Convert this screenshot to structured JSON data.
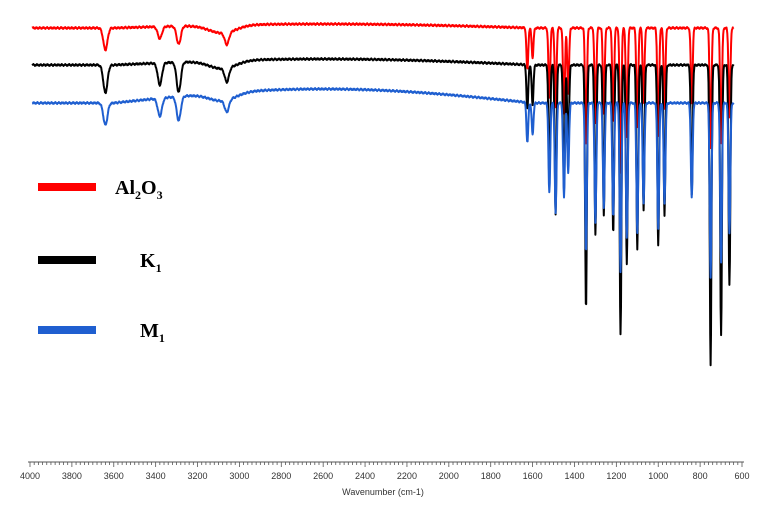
{
  "chart_data": {
    "type": "line",
    "xlabel": "Wavenumber (cm-1)",
    "xlim": [
      4000,
      600
    ],
    "x_ticks": [
      "4000",
      "3800",
      "3600",
      "3400",
      "3200",
      "3000",
      "2800",
      "2600",
      "2400",
      "2200",
      "2000",
      "1800",
      "1600",
      "1400",
      "1200",
      "1000",
      "800",
      "600"
    ],
    "series": [
      {
        "name": "Al2O3",
        "label_parts": [
          "Al",
          "2",
          "O",
          "3"
        ],
        "color": "#ff0000",
        "baseline": 28,
        "rise": 4,
        "peaks": [
          {
            "x": 3640,
            "d": 22
          },
          {
            "x": 3380,
            "d": 12
          },
          {
            "x": 3290,
            "d": 18
          },
          {
            "x": 3060,
            "d": 12
          },
          {
            "x": 1625,
            "d": 42
          },
          {
            "x": 1600,
            "d": 30
          },
          {
            "x": 1520,
            "d": 70
          },
          {
            "x": 1490,
            "d": 80
          },
          {
            "x": 1450,
            "d": 85
          },
          {
            "x": 1430,
            "d": 65
          },
          {
            "x": 1345,
            "d": 118
          },
          {
            "x": 1300,
            "d": 95
          },
          {
            "x": 1260,
            "d": 85
          },
          {
            "x": 1215,
            "d": 95
          },
          {
            "x": 1180,
            "d": 145
          },
          {
            "x": 1150,
            "d": 110
          },
          {
            "x": 1100,
            "d": 100
          },
          {
            "x": 1070,
            "d": 75
          },
          {
            "x": 1000,
            "d": 108
          },
          {
            "x": 970,
            "d": 80
          },
          {
            "x": 840,
            "d": 75
          },
          {
            "x": 750,
            "d": 120
          },
          {
            "x": 700,
            "d": 115
          },
          {
            "x": 660,
            "d": 90
          }
        ]
      },
      {
        "name": "K1",
        "label_parts": [
          "K",
          "1"
        ],
        "color": "#000000",
        "baseline": 65,
        "rise": 6,
        "peaks": [
          {
            "x": 3640,
            "d": 28
          },
          {
            "x": 3380,
            "d": 22
          },
          {
            "x": 3290,
            "d": 30
          },
          {
            "x": 3060,
            "d": 14
          },
          {
            "x": 1625,
            "d": 45
          },
          {
            "x": 1600,
            "d": 40
          },
          {
            "x": 1520,
            "d": 115
          },
          {
            "x": 1490,
            "d": 150
          },
          {
            "x": 1450,
            "d": 125
          },
          {
            "x": 1430,
            "d": 90
          },
          {
            "x": 1345,
            "d": 245
          },
          {
            "x": 1300,
            "d": 170
          },
          {
            "x": 1260,
            "d": 150
          },
          {
            "x": 1215,
            "d": 170
          },
          {
            "x": 1180,
            "d": 270
          },
          {
            "x": 1150,
            "d": 200
          },
          {
            "x": 1100,
            "d": 185
          },
          {
            "x": 1070,
            "d": 145
          },
          {
            "x": 1000,
            "d": 180
          },
          {
            "x": 970,
            "d": 150
          },
          {
            "x": 840,
            "d": 130
          },
          {
            "x": 750,
            "d": 300
          },
          {
            "x": 700,
            "d": 270
          },
          {
            "x": 660,
            "d": 220
          }
        ]
      },
      {
        "name": "M1",
        "label_parts": [
          "M",
          "1"
        ],
        "color": "#1f5fd0",
        "baseline": 103,
        "rise": 14,
        "peaks": [
          {
            "x": 3640,
            "d": 22
          },
          {
            "x": 3380,
            "d": 18
          },
          {
            "x": 3290,
            "d": 24
          },
          {
            "x": 3060,
            "d": 12
          },
          {
            "x": 1625,
            "d": 40
          },
          {
            "x": 1600,
            "d": 32
          },
          {
            "x": 1520,
            "d": 90
          },
          {
            "x": 1490,
            "d": 110
          },
          {
            "x": 1450,
            "d": 95
          },
          {
            "x": 1430,
            "d": 70
          },
          {
            "x": 1345,
            "d": 150
          },
          {
            "x": 1300,
            "d": 120
          },
          {
            "x": 1260,
            "d": 105
          },
          {
            "x": 1215,
            "d": 115
          },
          {
            "x": 1180,
            "d": 170
          },
          {
            "x": 1150,
            "d": 135
          },
          {
            "x": 1100,
            "d": 130
          },
          {
            "x": 1070,
            "d": 100
          },
          {
            "x": 1000,
            "d": 125
          },
          {
            "x": 970,
            "d": 100
          },
          {
            "x": 840,
            "d": 95
          },
          {
            "x": 750,
            "d": 175
          },
          {
            "x": 700,
            "d": 160
          },
          {
            "x": 660,
            "d": 130
          }
        ]
      }
    ],
    "grid": false,
    "legend_position": "left"
  }
}
